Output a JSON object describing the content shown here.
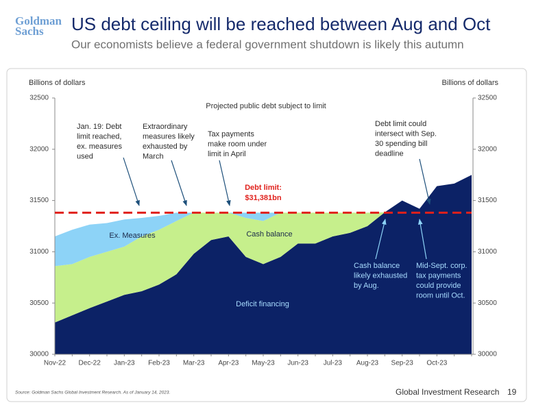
{
  "header": {
    "logo": [
      "Goldman",
      "Sachs"
    ],
    "title": "US debt ceiling will be reached between Aug and Oct",
    "subtitle": "Our economists believe a federal government shutdown is likely this autumn"
  },
  "chart_data": {
    "type": "stacked_area",
    "title": "Projected public debt subject to limit",
    "ylabel": "Billions of dollars",
    "y2label": "Billions of dollars",
    "categories": [
      "Nov-22",
      null,
      "Dec-22",
      null,
      "Jan-23",
      null,
      "Feb-23",
      null,
      "Mar-23",
      null,
      "Apr-23",
      null,
      "May-23",
      null,
      "Jun-23",
      null,
      "Jul-23",
      null,
      "Aug-23",
      null,
      "Sep-23",
      null,
      "Oct-23",
      null,
      null
    ],
    "series": [
      {
        "name": "Deficit financing",
        "color": "#0c2266",
        "values": [
          30310,
          30380,
          30450,
          30515,
          30580,
          30615,
          30680,
          30780,
          30980,
          31115,
          31150,
          30950,
          30880,
          30950,
          31080,
          31080,
          31150,
          31185,
          31250,
          31385,
          31500,
          31420,
          31640,
          31665,
          31750
        ]
      },
      {
        "name": "Cash balance",
        "color": "#c6ef8c",
        "values": [
          550,
          500,
          500,
          485,
          470,
          535,
          535,
          520,
          401,
          266,
          231,
          380,
          420,
          431,
          301,
          301,
          231,
          196,
          131,
          0,
          0,
          0,
          0,
          0,
          0
        ]
      },
      {
        "name": "Ex. Measures",
        "color": "#8dd3f7",
        "values": [
          290,
          335,
          315,
          280,
          265,
          180,
          135,
          81,
          0,
          0,
          0,
          51,
          81,
          0,
          0,
          0,
          0,
          0,
          0,
          0,
          0,
          0,
          0,
          0,
          0
        ]
      }
    ],
    "ylim": [
      30000,
      32500
    ],
    "yticks": [
      30000,
      30500,
      31000,
      31500,
      32000,
      32500
    ],
    "y2lim": [
      30000,
      32500
    ],
    "y2ticks": [
      30000,
      30500,
      31000,
      31500,
      32000,
      32500
    ],
    "debt_limit": {
      "value": 31381,
      "label": [
        "Debt limit:",
        "$31,381bn"
      ],
      "color": "#e0201b"
    },
    "annotations": [
      {
        "lines": [
          "Jan. 19: Debt",
          "limit reached,",
          "ex. measures",
          "used"
        ]
      },
      {
        "lines": [
          "Extraordinary",
          "measures likely",
          "exhausted by",
          "March"
        ]
      },
      {
        "lines": [
          "Tax payments",
          "make room under",
          "limit in April"
        ]
      },
      {
        "lines": [
          "Debt limit could",
          "intersect with Sep.",
          "30 spending bill",
          "deadline"
        ]
      },
      {
        "lines": [
          "Cash balance",
          "likely exhausted",
          "by Aug."
        ]
      },
      {
        "lines": [
          "Mid-Sept. corp.",
          "tax payments",
          "could provide",
          "room until Oct."
        ]
      }
    ]
  },
  "footer": {
    "source": "Source: Goldman Sachs Global Investment Research. As of January 14, 2023.",
    "brand": "Global Investment Research",
    "page": "19"
  }
}
